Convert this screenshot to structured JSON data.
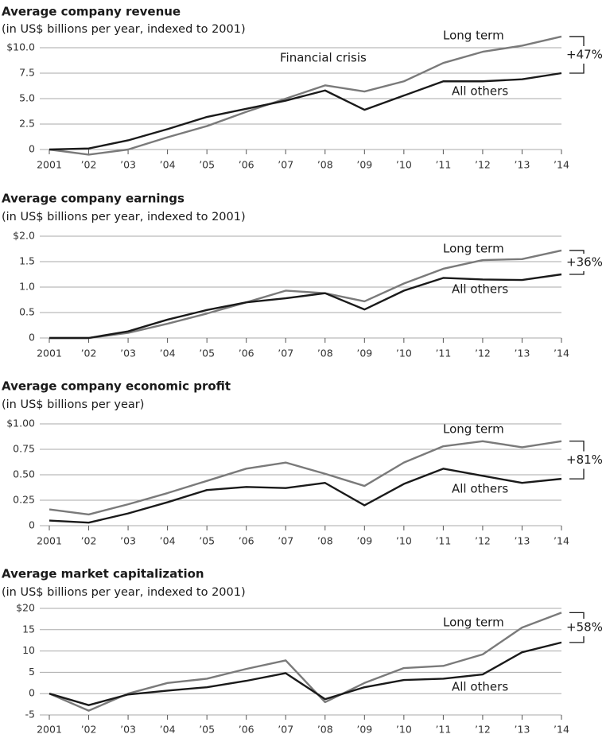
{
  "chart_data": [
    {
      "type": "line",
      "title": "Average company revenue",
      "subtitle": "(in US$ billions per year, indexed to 2001)",
      "categories": [
        "2001",
        "’02",
        "’03",
        "’04",
        "’05",
        "’06",
        "’07",
        "’08",
        "’09",
        "’10",
        "’11",
        "’12",
        "’13",
        "’14"
      ],
      "series": [
        {
          "name": "Long term",
          "color": "#7a7a7a",
          "values": [
            0,
            -0.5,
            0,
            1.2,
            2.3,
            3.7,
            5.0,
            6.3,
            5.7,
            6.7,
            8.5,
            9.6,
            10.2,
            11.1
          ]
        },
        {
          "name": "All others",
          "color": "#1a1a1a",
          "values": [
            0,
            0.1,
            0.9,
            2.0,
            3.2,
            4.0,
            4.8,
            5.8,
            3.9,
            5.3,
            6.7,
            6.7,
            6.9,
            7.5
          ]
        }
      ],
      "ylim": [
        0,
        10
      ],
      "yticks": [
        {
          "value": 10,
          "label": "$10.0"
        },
        7.5,
        {
          "value": 5,
          "label": "5.0"
        },
        2.5,
        0
      ],
      "grid": true,
      "annotations": [
        "Financial crisis",
        "+47%"
      ]
    },
    {
      "type": "line",
      "title": "Average company earnings",
      "subtitle": "(in US$ billions per year, indexed to 2001)",
      "categories": [
        "2001",
        "’02",
        "’03",
        "’04",
        "’05",
        "’06",
        "’07",
        "’08",
        "’09",
        "’10",
        "’11",
        "’12",
        "’13",
        "’14"
      ],
      "series": [
        {
          "name": "Long term",
          "color": "#7a7a7a",
          "values": [
            0,
            0,
            0.1,
            0.28,
            0.48,
            0.7,
            0.93,
            0.88,
            0.72,
            1.07,
            1.36,
            1.53,
            1.55,
            1.72
          ]
        },
        {
          "name": "All others",
          "color": "#1a1a1a",
          "values": [
            0,
            0,
            0.13,
            0.36,
            0.55,
            0.7,
            0.78,
            0.88,
            0.56,
            0.93,
            1.18,
            1.15,
            1.14,
            1.25
          ]
        }
      ],
      "ylim": [
        0,
        2
      ],
      "yticks": [
        {
          "value": 2,
          "label": "$2.0"
        },
        1.5,
        {
          "value": 1,
          "label": "1.0"
        },
        0.5,
        0
      ],
      "grid": true,
      "annotations": [
        "+36%"
      ]
    },
    {
      "type": "line",
      "title": "Average company economic profit",
      "subtitle": "(in US$ billions per year)",
      "categories": [
        "2001",
        "’02",
        "’03",
        "’04",
        "’05",
        "’06",
        "’07",
        "’08",
        "’09",
        "’10",
        "’11",
        "’12",
        "’13",
        "’14"
      ],
      "series": [
        {
          "name": "Long term",
          "color": "#7a7a7a",
          "values": [
            0.16,
            0.11,
            0.21,
            0.32,
            0.44,
            0.56,
            0.62,
            0.51,
            0.39,
            0.62,
            0.78,
            0.83,
            0.77,
            0.83
          ]
        },
        {
          "name": "All others",
          "color": "#1a1a1a",
          "values": [
            0.05,
            0.03,
            0.12,
            0.23,
            0.35,
            0.38,
            0.37,
            0.42,
            0.2,
            0.41,
            0.56,
            0.49,
            0.42,
            0.46
          ]
        }
      ],
      "ylim": [
        0,
        1
      ],
      "yticks": [
        {
          "value": 1,
          "label": "$1.00"
        },
        0.75,
        {
          "value": 0.5,
          "label": "0.50"
        },
        0.25,
        0
      ],
      "grid": true,
      "annotations": [
        "+81%"
      ]
    },
    {
      "type": "line",
      "title": "Average market capitalization",
      "subtitle": "(in US$ billions per year, indexed to 2001)",
      "categories": [
        "2001",
        "’02",
        "’03",
        "’04",
        "’05",
        "’06",
        "’07",
        "’08",
        "’09",
        "’10",
        "’11",
        "’12",
        "’13",
        "’14"
      ],
      "series": [
        {
          "name": "Long term",
          "color": "#7a7a7a",
          "values": [
            0,
            -4,
            0,
            2.5,
            3.5,
            5.8,
            7.8,
            -2,
            2.5,
            6,
            6.5,
            9.2,
            15.5,
            19
          ]
        },
        {
          "name": "All others",
          "color": "#1a1a1a",
          "values": [
            0,
            -2.7,
            -0.2,
            0.7,
            1.5,
            3.0,
            4.8,
            -1.3,
            1.5,
            3.2,
            3.5,
            4.5,
            9.7,
            12
          ]
        }
      ],
      "ylim": [
        -5,
        20
      ],
      "yticks": [
        {
          "value": 20,
          "label": "$20"
        },
        15,
        10,
        5,
        0,
        -5
      ],
      "grid": true,
      "annotations": [
        "+58%"
      ]
    }
  ]
}
